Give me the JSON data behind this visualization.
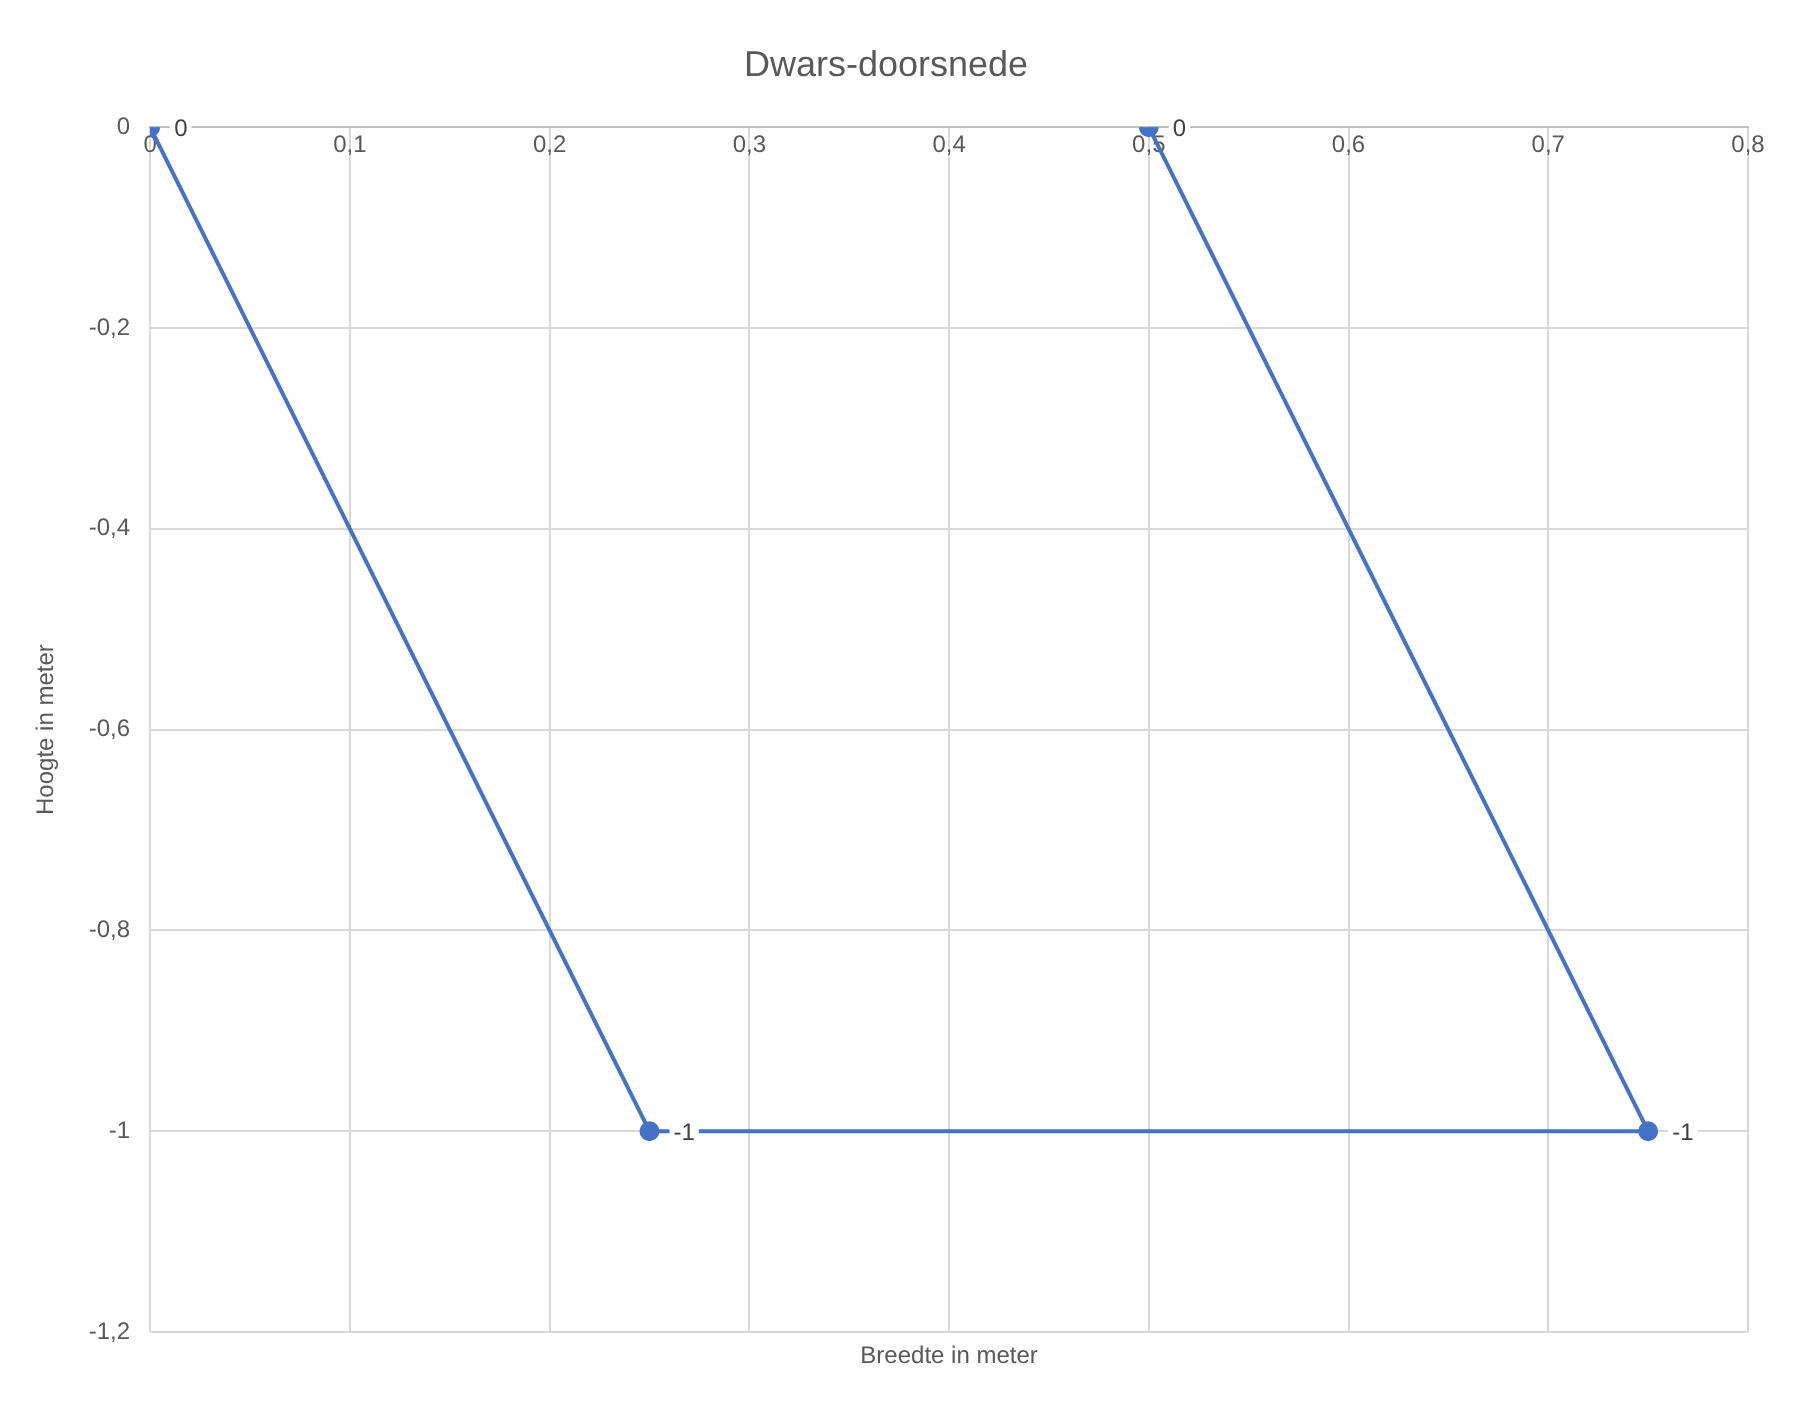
{
  "chart_data": {
    "type": "scatter",
    "title": "Dwars-doorsnede",
    "xlabel": "Breedte in meter",
    "ylabel": "Hoogte in meter",
    "x": [
      0,
      0.25,
      0.75,
      0.5
    ],
    "series": [
      {
        "type": "line",
        "color": "#4472c4",
        "values": [
          0,
          -1,
          -1,
          0
        ],
        "value_labels": [
          "0",
          "-1",
          "-1",
          "0"
        ]
      }
    ],
    "xlim": [
      0,
      0.8
    ],
    "xticks": [
      0,
      {
        "value": 0.1,
        "label": "0,1"
      },
      {
        "value": 0.2,
        "label": "0,2"
      },
      {
        "value": 0.3,
        "label": "0,3"
      },
      {
        "value": 0.4,
        "label": "0,4"
      },
      {
        "value": 0.5,
        "label": "0,5"
      },
      {
        "value": 0.6,
        "label": "0,6"
      },
      {
        "value": 0.7,
        "label": "0,7"
      },
      {
        "value": 0.8,
        "label": "0,8"
      }
    ],
    "ylim": [
      -1.2,
      0
    ],
    "yticks": [
      {
        "value": -1.2,
        "label": "-1,2"
      },
      -1,
      {
        "value": -0.8,
        "label": "-0,8"
      },
      {
        "value": -0.6,
        "label": "-0,6"
      },
      {
        "value": -0.4,
        "label": "-0,4"
      },
      {
        "value": -0.2,
        "label": "-0,2"
      },
      0
    ],
    "grid": true,
    "legend": false,
    "marker": "circle",
    "line_style": "solid"
  }
}
